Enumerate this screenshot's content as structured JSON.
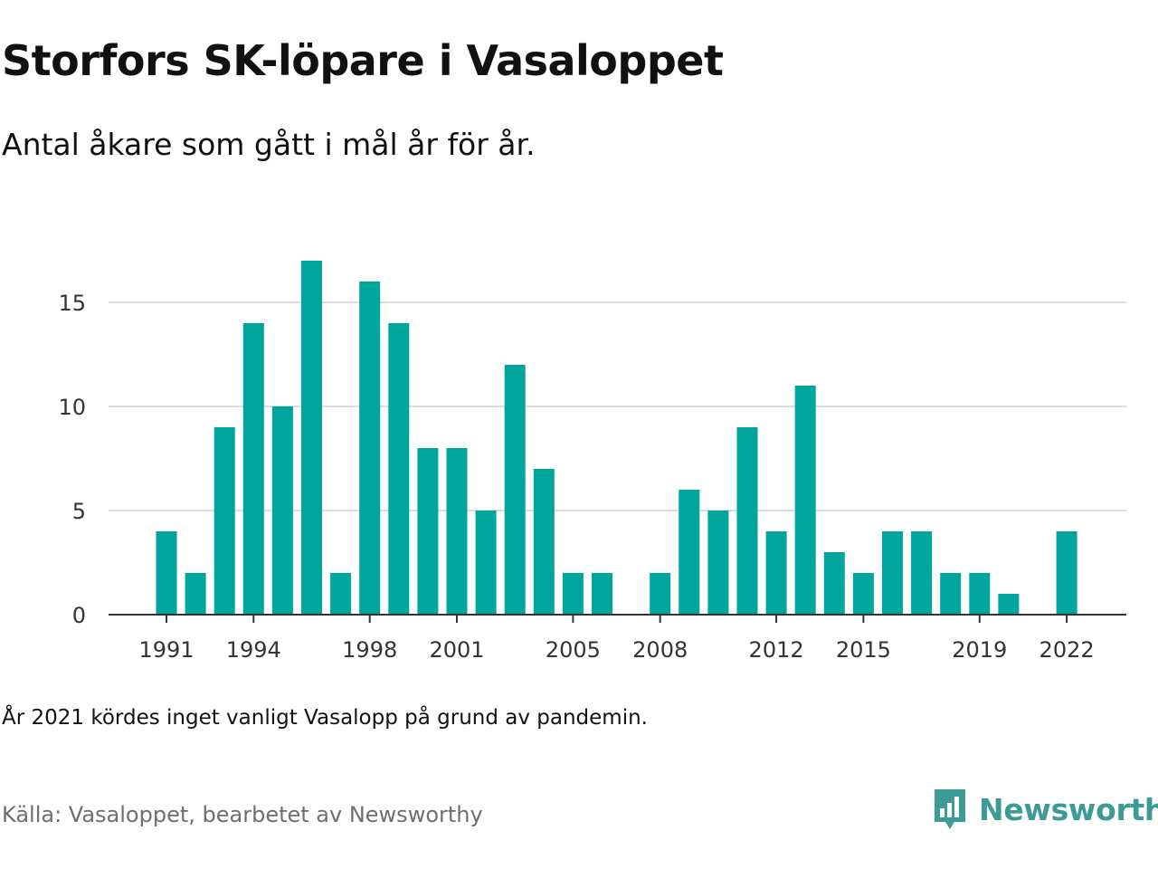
{
  "title": "Storfors SK-löpare i Vasaloppet",
  "subtitle": "Antal åkare som gått i mål år för år.",
  "note": "År 2021 kördes inget vanligt Vasalopp på grund av pandemin.",
  "source": "Källa: Vasaloppet, bearbetet av Newsworthy",
  "brand": {
    "name": "Newsworthy",
    "icon": "newsworthy-logo-icon",
    "color": "#3d9b95"
  },
  "chart_data": {
    "type": "bar",
    "x": [
      1991,
      1992,
      1993,
      1994,
      1995,
      1996,
      1997,
      1998,
      1999,
      2000,
      2001,
      2002,
      2003,
      2004,
      2005,
      2006,
      2007,
      2008,
      2009,
      2010,
      2011,
      2012,
      2013,
      2014,
      2015,
      2016,
      2017,
      2018,
      2019,
      2020,
      2021,
      2022
    ],
    "values": [
      4,
      2,
      9,
      14,
      10,
      17,
      2,
      16,
      14,
      8,
      8,
      5,
      12,
      7,
      2,
      2,
      0,
      2,
      6,
      5,
      9,
      4,
      11,
      3,
      2,
      4,
      4,
      2,
      2,
      1,
      0,
      4
    ],
    "x_tick_labels": [
      "1991",
      "1994",
      "1998",
      "2001",
      "2005",
      "2008",
      "2012",
      "2015",
      "2019",
      "2022"
    ],
    "y_ticks": [
      0,
      5,
      10,
      15
    ],
    "ylim": [
      0,
      17
    ],
    "grid": true,
    "bar_color": "#00a69b",
    "gridline_color": "#dddddd",
    "axis_color": "#333333"
  }
}
